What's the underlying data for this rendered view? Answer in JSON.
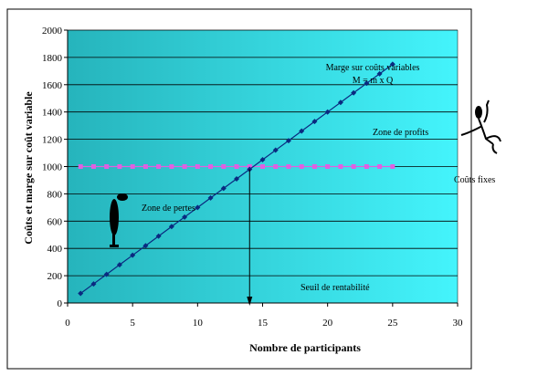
{
  "chart_data": {
    "type": "line",
    "title": "",
    "xlabel": "Nombre de participants",
    "ylabel": "Coûts et marge sur coût variable",
    "xlim": [
      0,
      30
    ],
    "ylim": [
      0,
      2000
    ],
    "xticks": [
      0,
      5,
      10,
      15,
      20,
      25,
      30
    ],
    "yticks": [
      0,
      200,
      400,
      600,
      800,
      1000,
      1200,
      1400,
      1600,
      1800,
      2000
    ],
    "grid": "horizontal",
    "series": [
      {
        "name": "Marge sur coûts variables",
        "color": "#0a2a80",
        "marker": "diamond",
        "x": [
          1,
          2,
          3,
          4,
          5,
          6,
          7,
          8,
          9,
          10,
          11,
          12,
          13,
          14,
          15,
          16,
          17,
          18,
          19,
          20,
          21,
          22,
          23,
          24,
          25
        ],
        "values": [
          70,
          140,
          210,
          280,
          350,
          420,
          490,
          560,
          630,
          700,
          770,
          840,
          910,
          980,
          1050,
          1120,
          1190,
          1260,
          1330,
          1400,
          1470,
          1540,
          1610,
          1680,
          1750
        ]
      },
      {
        "name": "Coûts fixes",
        "color": "#e060e0",
        "marker": "square",
        "x": [
          1,
          2,
          3,
          4,
          5,
          6,
          7,
          8,
          9,
          10,
          11,
          12,
          13,
          14,
          15,
          16,
          17,
          18,
          19,
          20,
          21,
          22,
          23,
          24,
          25
        ],
        "values": [
          1000,
          1000,
          1000,
          1000,
          1000,
          1000,
          1000,
          1000,
          1000,
          1000,
          1000,
          1000,
          1000,
          1000,
          1000,
          1000,
          1000,
          1000,
          1000,
          1000,
          1000,
          1000,
          1000,
          1000,
          1000
        ]
      }
    ],
    "annotations": {
      "marge_line1": "Marge sur coûts variables",
      "marge_line2": "M = m x Q",
      "profits": "Zone de profits",
      "pertes": "Zone de pertes",
      "fixes": "Coûts fixes",
      "seuil": "Seuil de rentabilité",
      "seuil_x": 14
    },
    "colors": {
      "bg_left": "#26b4bc",
      "bg_right": "#44f4fc"
    }
  }
}
